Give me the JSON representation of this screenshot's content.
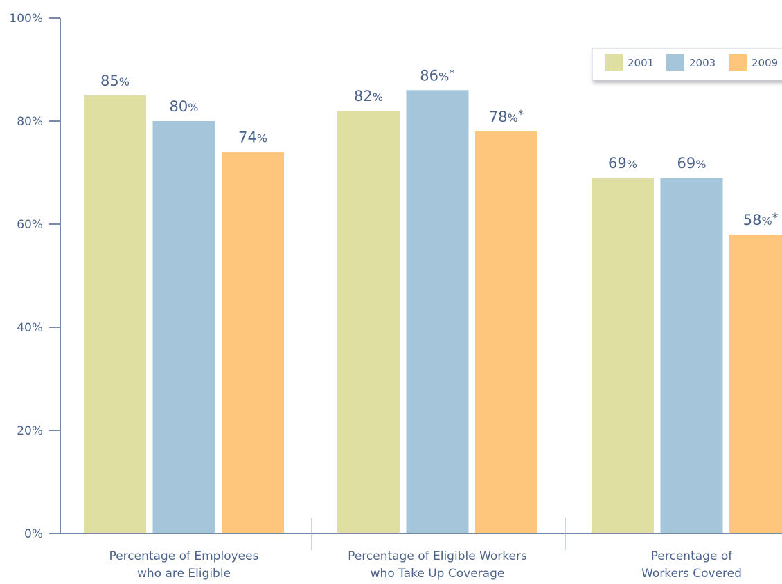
{
  "chart_data": {
    "type": "bar",
    "categories": [
      {
        "line1": "Percentage of Employees",
        "line2": "who are Eligible"
      },
      {
        "line1": "Percentage of Eligible Workers",
        "line2": "who Take Up Coverage"
      },
      {
        "line1": "Percentage of",
        "line2": "Workers Covered"
      }
    ],
    "series": [
      {
        "name": "2001",
        "color": "#e0dfa2",
        "values": [
          85,
          82,
          69
        ]
      },
      {
        "name": "2003",
        "color": "#a5c5db",
        "values": [
          80,
          86,
          69
        ]
      },
      {
        "name": "2009",
        "color": "#fec67d",
        "values": [
          74,
          78,
          58
        ]
      }
    ],
    "data_labels": [
      [
        "85",
        "80",
        "74"
      ],
      [
        "82",
        "86",
        "78"
      ],
      [
        "69",
        "69",
        "58"
      ]
    ],
    "asterisks": [
      [
        false,
        false,
        false
      ],
      [
        false,
        true,
        true
      ],
      [
        false,
        false,
        true
      ]
    ],
    "value_suffix": "%",
    "asterisk_symbol": "*",
    "ylim": [
      0,
      100
    ],
    "yticks": [
      {
        "value": 0,
        "label": "0%"
      },
      {
        "value": 20,
        "label": "20%"
      },
      {
        "value": 40,
        "label": "40%"
      },
      {
        "value": 60,
        "label": "60%"
      },
      {
        "value": 80,
        "label": "80%"
      },
      {
        "value": 100,
        "label": "100%"
      }
    ],
    "legend_position": "top-right",
    "text_color": "#4a628a",
    "axis_color": "#4a628a",
    "divider_color": "#9aa8bd"
  }
}
